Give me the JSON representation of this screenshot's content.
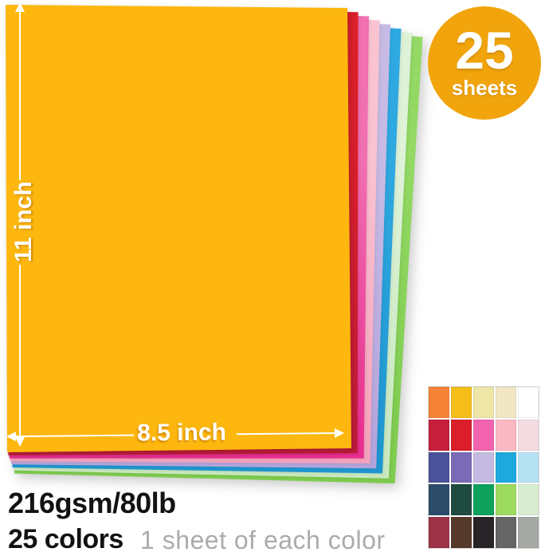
{
  "badge": {
    "number": "25",
    "label": "sheets",
    "bg": "#F1A40B"
  },
  "dimensions": {
    "height_label": "11 inch",
    "width_label": "8.5 inch"
  },
  "footer": {
    "weight": "216gsm/80lb",
    "color_count": "25 colors",
    "note": "1 sheet of each color"
  },
  "stack": {
    "sheets": [
      {
        "name": "gold",
        "color": "#FDB70F"
      },
      {
        "name": "red",
        "color": "#DA202B",
        "color2": "#C21C3B"
      },
      {
        "name": "hot-pink",
        "color": "#F170B0",
        "color2": "#E82F90"
      },
      {
        "name": "light-pink",
        "color": "#FAC3D1",
        "color2": "#F5A3BD"
      },
      {
        "name": "lavender",
        "color": "#C7BBE5",
        "color2": "#B4A5DC"
      },
      {
        "name": "blue",
        "color": "#2FA9E1",
        "color2": "#1F97D0"
      },
      {
        "name": "mint",
        "color": "#DEF2D8",
        "color2": "#C9E9C0"
      },
      {
        "name": "green",
        "color": "#93D964",
        "color2": "#7FCC4F"
      }
    ]
  },
  "swatch_grid": {
    "rows": [
      [
        "#F58236",
        "#F5BE18",
        "#EEE6A7",
        "#F1E7C5",
        "#FFFFFF"
      ],
      [
        "#C51F3D",
        "#DA1F2B",
        "#F163AE",
        "#FAB8C3",
        "#F4DCE2"
      ],
      [
        "#4A5399",
        "#7B6BB7",
        "#C5BBE2",
        "#1EA9DD",
        "#B7E2F4"
      ],
      [
        "#2D4C69",
        "#1F4B41",
        "#0DA15D",
        "#9DDA60",
        "#D9EDD3"
      ],
      [
        "#9D3348",
        "#553A2C",
        "#282428",
        "#656565",
        "#A7AAA4"
      ]
    ]
  }
}
